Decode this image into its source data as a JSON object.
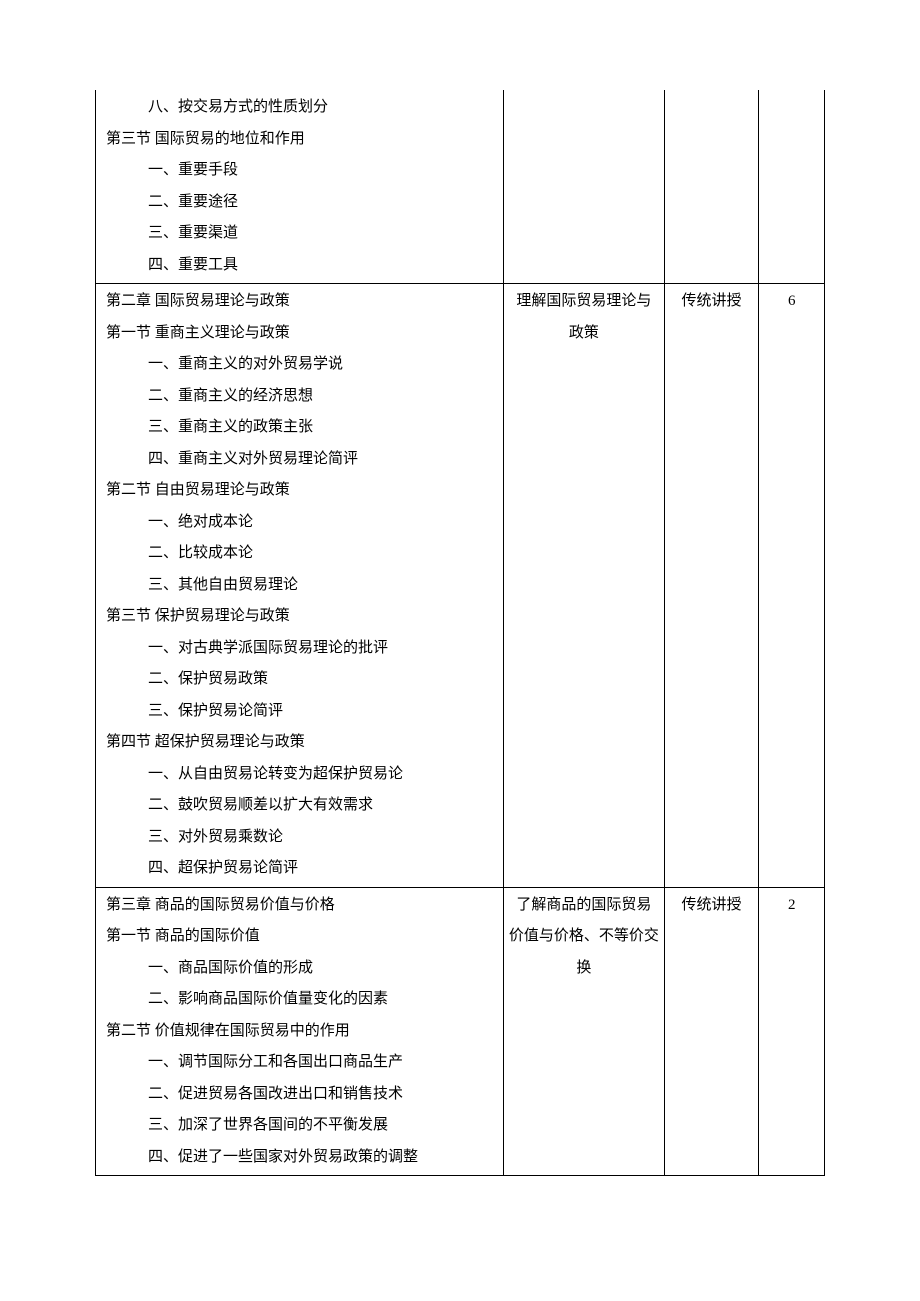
{
  "rows": [
    {
      "content": [
        {
          "cls": "ind-sub",
          "text": "八、按交易方式的性质划分"
        },
        {
          "cls": "ind-sec",
          "text": "第三节 国际贸易的地位和作用"
        },
        {
          "cls": "ind-sub",
          "text": "一、重要手段"
        },
        {
          "cls": "ind-sub",
          "text": "二、重要途径"
        },
        {
          "cls": "ind-sub",
          "text": "三、重要渠道"
        },
        {
          "cls": "ind-sub",
          "text": "四、重要工具"
        }
      ],
      "objective": "",
      "method": "",
      "hours": "",
      "noTop": true
    },
    {
      "content": [
        {
          "cls": "ind-sec",
          "text": "第二章 国际贸易理论与政策"
        },
        {
          "cls": "ind-sec",
          "text": "第一节 重商主义理论与政策"
        },
        {
          "cls": "ind-sub",
          "text": "一、重商主义的对外贸易学说"
        },
        {
          "cls": "ind-sub",
          "text": "二、重商主义的经济思想"
        },
        {
          "cls": "ind-sub",
          "text": "三、重商主义的政策主张"
        },
        {
          "cls": "ind-sub",
          "text": "四、重商主义对外贸易理论简评"
        },
        {
          "cls": "ind-sec",
          "text": "第二节 自由贸易理论与政策"
        },
        {
          "cls": "ind-sub",
          "text": "一、绝对成本论"
        },
        {
          "cls": "ind-sub",
          "text": "二、比较成本论"
        },
        {
          "cls": "ind-sub",
          "text": "三、其他自由贸易理论"
        },
        {
          "cls": "ind-sec",
          "text": "第三节 保护贸易理论与政策"
        },
        {
          "cls": "ind-sub",
          "text": "一、对古典学派国际贸易理论的批评"
        },
        {
          "cls": "ind-sub",
          "text": "二、保护贸易政策"
        },
        {
          "cls": "ind-sub",
          "text": "三、保护贸易论简评"
        },
        {
          "cls": "ind-sec",
          "text": "第四节 超保护贸易理论与政策"
        },
        {
          "cls": "ind-sub",
          "text": "一、从自由贸易论转变为超保护贸易论"
        },
        {
          "cls": "ind-sub",
          "text": "二、鼓吹贸易顺差以扩大有效需求"
        },
        {
          "cls": "ind-sub",
          "text": "三、对外贸易乘数论"
        },
        {
          "cls": "ind-sub",
          "text": "四、超保护贸易论简评"
        }
      ],
      "objective": "理解国际贸易理论与\n政策",
      "method": "传统讲授",
      "hours": "6"
    },
    {
      "content": [
        {
          "cls": "ind-sec",
          "text": "第三章 商品的国际贸易价值与价格"
        },
        {
          "cls": "ind-sec",
          "text": "第一节 商品的国际价值"
        },
        {
          "cls": "ind-sub",
          "text": "一、商品国际价值的形成"
        },
        {
          "cls": "ind-sub",
          "text": "二、影响商品国际价值量变化的因素"
        },
        {
          "cls": "ind-sec",
          "text": "第二节 价值规律在国际贸易中的作用"
        },
        {
          "cls": "ind-sub",
          "text": "一、调节国际分工和各国出口商品生产"
        },
        {
          "cls": "ind-sub",
          "text": "二、促进贸易各国改进出口和销售技术"
        },
        {
          "cls": "ind-sub",
          "text": "三、加深了世界各国间的不平衡发展"
        },
        {
          "cls": "ind-sub",
          "text": "四、促进了一些国家对外贸易政策的调整"
        }
      ],
      "objective": "了解商品的国际贸易\n价值与价格、不等价交\n换",
      "method": "传统讲授",
      "hours": "2"
    }
  ]
}
